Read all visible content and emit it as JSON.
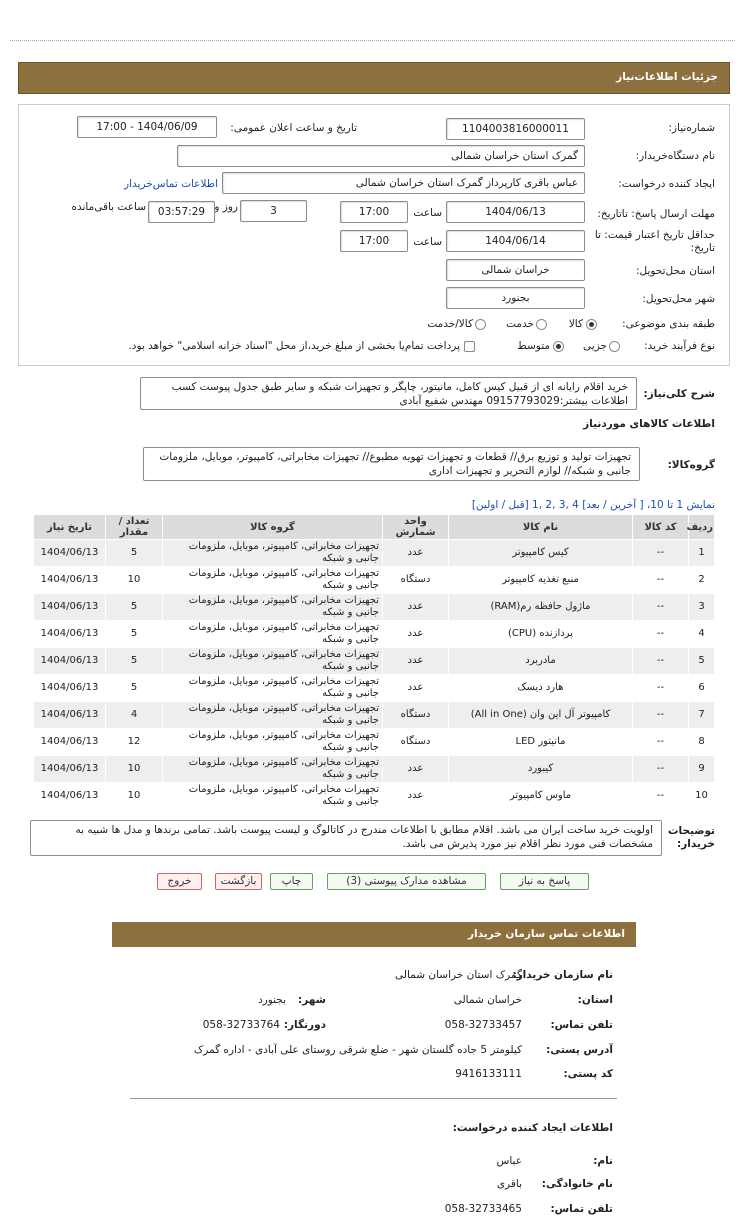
{
  "header": {
    "title": "جزئیات اطلاعات‌نیاز"
  },
  "form": {
    "need_number": {
      "label": "شماره‌نیاز:",
      "value": "1104003816000011"
    },
    "announce": {
      "label": "تاریخ و ساعت اعلان عمومی:",
      "value": "1404/06/09 - 17:00"
    },
    "buyer": {
      "label": "نام دستگاه‌خریدار:",
      "value": "گمرک استان خراسان شمالی"
    },
    "creator": {
      "label": "ایجاد کننده درخواست:",
      "value": "عباس باقری کارپرداز گمرک استان خراسان شمالی",
      "link": "اطلاعات تماس‌خریدار"
    },
    "deadline": {
      "label": "مهلت ارسال پاسخ: تا‌تاریخ:",
      "date": "1404/06/13",
      "time_label": "ساعت",
      "time": "17:00",
      "days": "3",
      "days_label": "روز و",
      "remaining": "03:57:29",
      "remaining_label": "ساعت باقی‌مانده"
    },
    "validity": {
      "label": "حداقل تاریخ اعتبار قیمت: تا تاریخ:",
      "date": "1404/06/14",
      "time_label": "ساعت",
      "time": "17:00"
    },
    "province": {
      "label": "استان محل‌تحویل:",
      "value": "خراسان شمالی"
    },
    "city": {
      "label": "شهر محل‌تحویل:",
      "value": "بجنورد"
    },
    "category": {
      "label": "طبقه بندی موضوعی:",
      "options": [
        "کالا",
        "خدمت",
        "کالا/خدمت"
      ],
      "selected": 0
    },
    "process": {
      "label": "نوع فرآیند خرید:",
      "options": [
        "جزیی",
        "متوسط"
      ],
      "selected": 1,
      "treasury": "پرداخت تمام‌یا بخشی از مبلغ خرید،از محل \"اسناد خزانه اسلامی\" خواهد بود."
    }
  },
  "description": {
    "label": "شرح کلی‌نیاز:",
    "text": "خرید اقلام رایانه ای از قبیل کیس کامل، مانیتور، چاپگر و تجهیزات شبکه و سایر طبق جدول پیوست کسب اطلاعات بیشتر:09157793029 مهندس شفیع آبادی"
  },
  "goods": {
    "title": "اطلاعات کالاهای موردنیاز",
    "group_label": "گروه‌کالا:",
    "group_text": "تجهیزات تولید و توزیع برق// قطعات و تجهیزات تهویه مطبوع// تجهیزات مخابراتی، کامپیوتر، موبایل، ملزومات جانبی و شبکه// لوازم التحریر و تجهیزات اداری",
    "pagination": "نمایش 1 تا 10، [ آخرین / بعد] 4 ,3 ,2 ,1 [قبل / اولین]",
    "columns": [
      "ردیف",
      "کد کالا",
      "نام کالا",
      "واحد شمارش",
      "گروه کالا",
      "تعداد / مقدار",
      "تاریخ نیاز"
    ],
    "rows": [
      [
        "1",
        "--",
        "کیس کامپیوتر",
        "عدد",
        "تجهیزات مخابراتی، کامپیوتر، موبایل، ملزومات جانبی و شبکه",
        "5",
        "1404/06/13"
      ],
      [
        "2",
        "--",
        "منبع تغذیه کامپیوتر",
        "دستگاه",
        "تجهیزات مخابراتی، کامپیوتر، موبایل، ملزومات جانبی و شبکه",
        "10",
        "1404/06/13"
      ],
      [
        "3",
        "--",
        "ماژول حافظه رم(RAM)",
        "عدد",
        "تجهیزات مخابراتی، کامپیوتر، موبایل، ملزومات جانبی و شبکه",
        "5",
        "1404/06/13"
      ],
      [
        "4",
        "--",
        "پردازنده (CPU)",
        "عدد",
        "تجهیزات مخابراتی، کامپیوتر، موبایل، ملزومات جانبی و شبکه",
        "5",
        "1404/06/13"
      ],
      [
        "5",
        "--",
        "مادربرد",
        "عدد",
        "تجهیزات مخابراتی، کامپیوتر، موبایل، ملزومات جانبی و شبکه",
        "5",
        "1404/06/13"
      ],
      [
        "6",
        "--",
        "هارد دیسک",
        "عدد",
        "تجهیزات مخابراتی، کامپیوتر، موبایل، ملزومات جانبی و شبکه",
        "5",
        "1404/06/13"
      ],
      [
        "7",
        "--",
        "کامپیوتر آل این وان (All in One)",
        "دستگاه",
        "تجهیزات مخابراتی، کامپیوتر، موبایل، ملزومات جانبی و شبکه",
        "4",
        "1404/06/13"
      ],
      [
        "8",
        "--",
        "مانیتور LED",
        "دستگاه",
        "تجهیزات مخابراتی، کامپیوتر، موبایل، ملزومات جانبی و شبکه",
        "12",
        "1404/06/13"
      ],
      [
        "9",
        "--",
        "کیبورد",
        "عدد",
        "تجهیزات مخابراتی، کامپیوتر، موبایل، ملزومات جانبی و شبکه",
        "10",
        "1404/06/13"
      ],
      [
        "10",
        "--",
        "ماوس کامپیوتر",
        "عدد",
        "تجهیزات مخابراتی، کامپیوتر، موبایل، ملزومات جانبی و شبکه",
        "10",
        "1404/06/13"
      ]
    ]
  },
  "notes": {
    "label": "توضیحات خریدار:",
    "text": "اولویت خرید ساخت ایران می باشد. اقلام مطابق با اطلاعات مندرج در کاتالوگ و لیست پیوست باشد. تمامی برندها و مدل ها شبیه به مشخصات فنی مورد نظر اقلام نیز مورد پذیرش می باشد."
  },
  "buttons": [
    "پاسخ به نیاز",
    "مشاهده مدارک پیوستی (3)",
    "چاپ",
    "بازگشت",
    "خروج"
  ],
  "contact": {
    "title": "اطلاعات تماس سازمان خریدار",
    "org_label": "نام سازمان خریدار:",
    "org": "گمرک استان خراسان شمالی",
    "province_label": "استان:",
    "province": "خراسان شمالی",
    "city_label": "شهر:",
    "city": "بجنورد",
    "phone_label": "تلفن تماس:",
    "phone": "058-32733457",
    "fax_label": "دورنگار:",
    "fax": "058-32733764",
    "address_label": "آدرس پستی:",
    "address": "کیلومتر 5 جاده گلستان شهر - ضلع شرقی روستای علی آبادی - اداره گمرک",
    "postal_label": "کد پستی:",
    "postal": "9416133111"
  },
  "requester": {
    "title": "اطلاعات ایجاد کننده درخواست:",
    "name_label": "نام:",
    "name": "عباس",
    "family_label": "نام خانوادگی:",
    "family": "باقری",
    "phone_label": "تلفن تماس:",
    "phone": "058-32733465"
  }
}
